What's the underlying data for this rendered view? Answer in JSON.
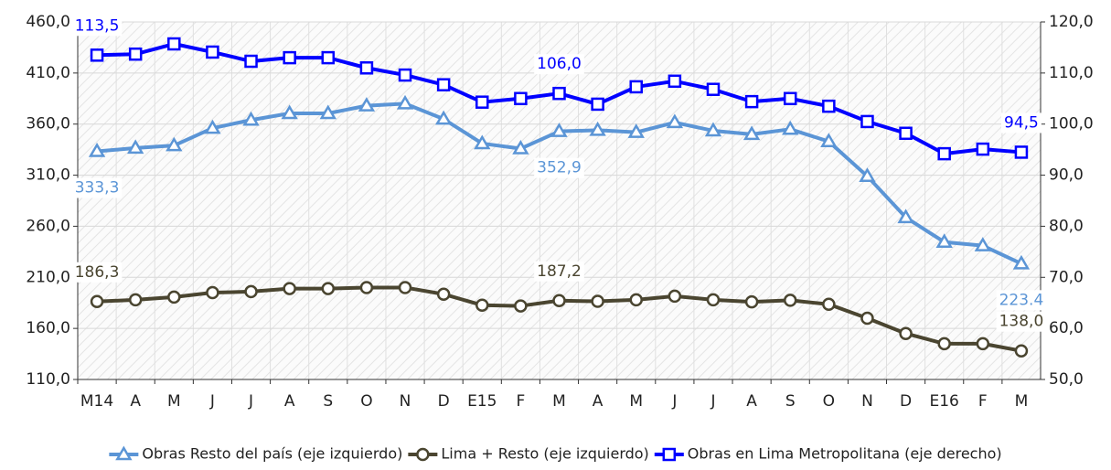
{
  "chart_data": {
    "type": "line",
    "categories": [
      "M14",
      "A",
      "M",
      "J",
      "J",
      "A",
      "S",
      "O",
      "N",
      "D",
      "E15",
      "F",
      "M",
      "A",
      "M",
      "J",
      "J",
      "A",
      "S",
      "O",
      "N",
      "D",
      "E16",
      "F",
      "M"
    ],
    "series": [
      {
        "name": "Obras Resto del país (eje izquierdo)",
        "color": "#5b95d6",
        "marker": "triangle",
        "values": [
          333.3,
          336.6,
          339,
          356,
          364,
          370.5,
          370.5,
          378,
          380,
          365,
          341,
          336,
          352.9,
          354,
          352,
          361.6,
          353.5,
          350,
          355,
          343,
          309,
          268.6,
          244.5,
          241,
          223.4
        ],
        "value_labels": [
          "333,3",
          null,
          null,
          null,
          null,
          null,
          null,
          null,
          null,
          null,
          null,
          null,
          "352,9",
          null,
          null,
          null,
          null,
          null,
          null,
          null,
          null,
          null,
          null,
          null,
          "223.4"
        ]
      },
      {
        "name": "Lima + Resto (eje izquierdo)",
        "color": "#4a4530",
        "marker": "circle",
        "values": [
          186.3,
          188,
          190.7,
          195,
          196,
          199,
          199,
          200,
          200,
          193.5,
          182.7,
          182,
          187.2,
          186.5,
          188,
          191.6,
          188,
          186,
          187.5,
          183.6,
          170,
          155,
          145,
          145,
          138.0
        ],
        "value_labels": [
          "186,3",
          null,
          null,
          null,
          null,
          null,
          null,
          null,
          null,
          null,
          null,
          null,
          "187,2",
          null,
          null,
          null,
          null,
          null,
          null,
          null,
          null,
          null,
          null,
          null,
          "138,0"
        ]
      },
      {
        "name": "Obras en Lima Metropolitana (eje derecho)",
        "color": "#0000ff",
        "marker": "square",
        "axis": "y2",
        "values": [
          113.5,
          113.7,
          115.7,
          114.1,
          112.3,
          113,
          113,
          111,
          109.6,
          107.7,
          104.3,
          105,
          106.0,
          103.9,
          107.3,
          108.4,
          106.8,
          104.4,
          105,
          103.5,
          100.5,
          98.2,
          94.2,
          95.1,
          94.5
        ],
        "value_labels": [
          "113,5",
          null,
          null,
          null,
          null,
          null,
          null,
          null,
          null,
          null,
          null,
          null,
          "106,0",
          null,
          null,
          null,
          null,
          null,
          null,
          null,
          null,
          null,
          null,
          null,
          "94,5"
        ]
      }
    ],
    "ylim": [
      110,
      460
    ],
    "yticks": [
      {
        "value": 110,
        "label": "110,0"
      },
      {
        "value": 160,
        "label": "160,0"
      },
      {
        "value": 210,
        "label": "210,0"
      },
      {
        "value": 260,
        "label": "260,0"
      },
      {
        "value": 310,
        "label": "310,0"
      },
      {
        "value": 360,
        "label": "360,0"
      },
      {
        "value": 410,
        "label": "410,0"
      },
      {
        "value": 460,
        "label": "460,0"
      }
    ],
    "y2lim": [
      50,
      120
    ],
    "y2ticks": [
      {
        "value": 50,
        "label": "50,0"
      },
      {
        "value": 60,
        "label": "60,0"
      },
      {
        "value": 70,
        "label": "70,0"
      },
      {
        "value": 80,
        "label": "80,0"
      },
      {
        "value": 90,
        "label": "90,0"
      },
      {
        "value": 100,
        "label": "100,0"
      },
      {
        "value": 110,
        "label": "110,0"
      },
      {
        "value": 120,
        "label": "120,0"
      }
    ],
    "legend": "bottom"
  }
}
